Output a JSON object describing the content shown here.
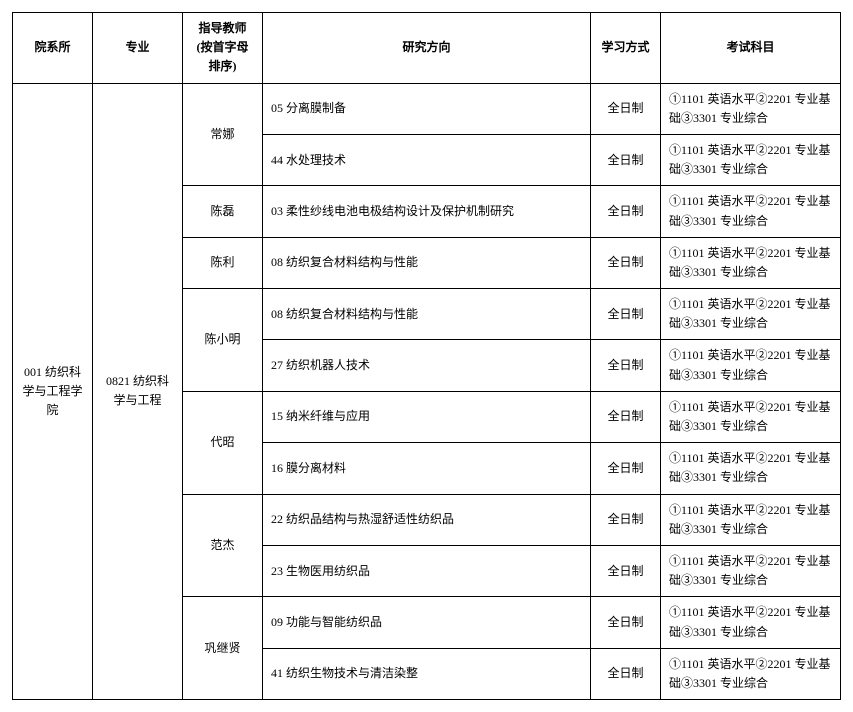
{
  "headers": {
    "department": "院系所",
    "major": "专业",
    "advisor": "指导教师\n(按首字母排序)",
    "direction": "研究方向",
    "study_mode": "学习方式",
    "exam": "考试科目"
  },
  "department": "001 纺织科学与工程学院",
  "major": "0821 纺织科学与工程",
  "exam_text": "①1101 英语水平②2201 专业基础③3301 专业综合",
  "mode_fulltime": "全日制",
  "advisors": [
    {
      "name": "常娜",
      "dirs": [
        "05 分离膜制备",
        "44 水处理技术"
      ]
    },
    {
      "name": "陈磊",
      "dirs": [
        "03 柔性纱线电池电极结构设计及保护机制研究"
      ]
    },
    {
      "name": "陈利",
      "dirs": [
        "08 纺织复合材料结构与性能"
      ]
    },
    {
      "name": "陈小明",
      "dirs": [
        "08 纺织复合材料结构与性能",
        "27 纺织机器人技术"
      ]
    },
    {
      "name": "代昭",
      "dirs": [
        "15 纳米纤维与应用",
        "16 膜分离材料"
      ]
    },
    {
      "name": "范杰",
      "dirs": [
        "22 纺织品结构与热湿舒适性纺织品",
        "23 生物医用纺织品"
      ]
    },
    {
      "name": "巩继贤",
      "dirs": [
        "09 功能与智能纺织品",
        "41 纺织生物技术与清洁染整"
      ]
    }
  ]
}
